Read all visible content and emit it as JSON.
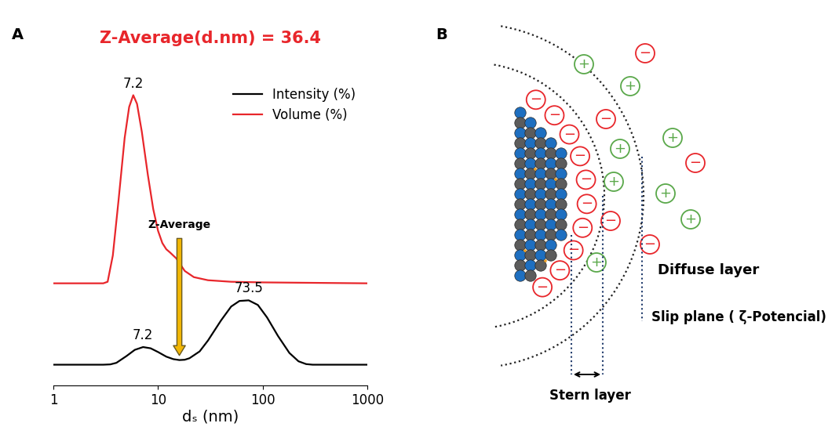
{
  "panel_labels": [
    "A",
    "B"
  ],
  "chart_data": {
    "type": "line",
    "title": "Z-Average(d.nm) = 36.4",
    "x_label": "dₛ (nm)",
    "log": "x",
    "xlim": [
      1,
      1000
    ],
    "xticks": [
      1,
      10,
      100,
      1000
    ],
    "ylim": [
      0,
      100
    ],
    "tick_labels": "x",
    "legend": "upper right",
    "series": [
      {
        "name": "Intensity (%)",
        "color": "#000000",
        "x": [
          1,
          2,
          3,
          3.5,
          4,
          5,
          6,
          7.2,
          8.5,
          10,
          12,
          14,
          16,
          18,
          20,
          25,
          30,
          40,
          50,
          60,
          73.5,
          90,
          110,
          140,
          180,
          220,
          260,
          300,
          1000
        ],
        "values": [
          6.7,
          6.7,
          6.7,
          6.8,
          7.3,
          9.5,
          11.5,
          12.4,
          12.0,
          10.8,
          9.3,
          8.5,
          8.2,
          8.3,
          8.8,
          11.0,
          14.5,
          21.0,
          25.5,
          27.3,
          27.5,
          26.0,
          22.0,
          16.0,
          10.5,
          7.8,
          6.9,
          6.7,
          6.7
        ]
      },
      {
        "name": "Volume (%)",
        "color": "#e8262b",
        "x": [
          1,
          2,
          3,
          3.3,
          3.7,
          4.2,
          4.8,
          5.3,
          5.8,
          6.3,
          7,
          8,
          9,
          10,
          11,
          12,
          13,
          15,
          18,
          22,
          30,
          50,
          100,
          1000
        ],
        "values": [
          33,
          33,
          33,
          33.5,
          42,
          60,
          80,
          90,
          93.8,
          91,
          82,
          68,
          57,
          50,
          46,
          44,
          43,
          41,
          37,
          35,
          34,
          33.5,
          33.3,
          33
        ]
      }
    ],
    "annotations": [
      {
        "text": "7.2",
        "x": 7.2,
        "series": "Volume (%)"
      },
      {
        "text": "7.2",
        "x": 7.2,
        "series": "Intensity (%)"
      },
      {
        "text": "73.5",
        "x": 73.5,
        "series": "Intensity (%)"
      }
    ],
    "arrow_label": "Z-Average"
  },
  "diagram": {
    "diffuse_layer": "Diffuse layer",
    "slip_plane": "Slip plane ( ζ-Potencial)",
    "stern_layer": "Stern layer",
    "positive_ion": "+",
    "negative_ion": "−"
  }
}
